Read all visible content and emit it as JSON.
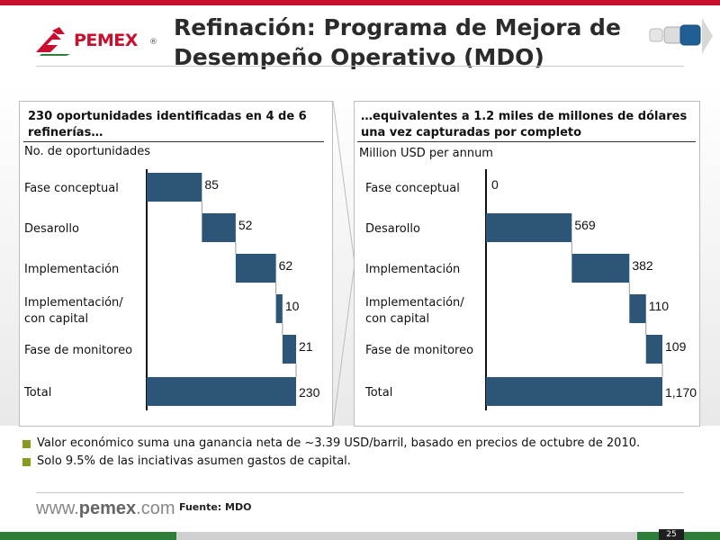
{
  "header": {
    "title_line1": "Refinación: Programa de Mejora de",
    "title_line2": "Desempeño Operativo (MDO)",
    "logo_text": "PEMEX",
    "logo_reg": "®"
  },
  "left_panel": {
    "heading_line1": "230 oportunidades identificadas en 4 de 6",
    "heading_line2": "refinerías…",
    "unit_label": "No. de oportunidades"
  },
  "right_panel": {
    "heading_line1": "…equivalentes a 1.2 miles de millones de dólares",
    "heading_line2": "una vez capturadas por completo",
    "unit_label": "Million USD per annum"
  },
  "chart_data": [
    {
      "type": "bar",
      "subtype": "waterfall",
      "title": "230 oportunidades identificadas en 4 de 6 refinerías…",
      "ylabel": "No. de oportunidades",
      "categories": [
        [
          "Fase conceptual"
        ],
        [
          "Desarollo"
        ],
        [
          "Implementación"
        ],
        [
          "Implementación/",
          "con capital"
        ],
        [
          "Fase de monitoreo"
        ],
        [
          "Total"
        ]
      ],
      "values": [
        85,
        52,
        62,
        10,
        21,
        230
      ],
      "value_labels": [
        "85",
        "52",
        "62",
        "10",
        "21",
        "230"
      ],
      "total_index": 5,
      "color": "#2d5577"
    },
    {
      "type": "bar",
      "subtype": "waterfall",
      "title": "…equivalentes a 1.2 miles de millones de dólares una vez capturadas por completo",
      "ylabel": "Million USD per annum",
      "categories": [
        [
          "Fase conceptual"
        ],
        [
          "Desarollo"
        ],
        [
          "Implementación"
        ],
        [
          "Implementación/",
          "con capital"
        ],
        [
          "Fase de monitoreo"
        ],
        [
          "Total"
        ]
      ],
      "values": [
        0,
        569,
        382,
        110,
        109,
        1170
      ],
      "value_labels": [
        "0",
        "569",
        "382",
        "110",
        "109",
        "1,170"
      ],
      "total_index": 5,
      "color": "#2d5577"
    }
  ],
  "bullets": [
    "Valor económico suma una ganancia neta de ~3.39 USD/barril, basado en precios de octubre de 2010.",
    "Solo 9.5% de las inciativas asumen gastos de capital."
  ],
  "footer": {
    "site_prefix": "www.",
    "site_brand": "pemex",
    "site_suffix": ".com",
    "source": "Fuente: MDO",
    "page_number": "25"
  },
  "colors": {
    "brand_red": "#c8102e",
    "bar": "#2d5577",
    "bullet": "#8a9a1e",
    "footer_green": "#2e7d3a"
  }
}
